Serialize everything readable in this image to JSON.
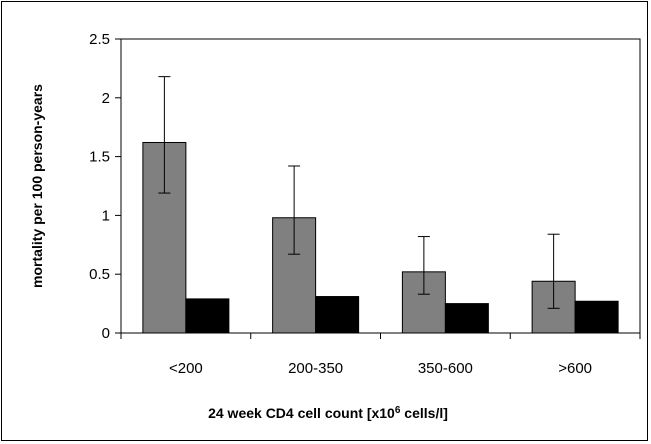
{
  "chart_data": {
    "type": "bar",
    "title": "",
    "xlabel": "24 week CD4 cell count [x10",
    "xlabel_sup": "6",
    "xlabel_tail": " cells/l]",
    "ylabel": "mortality per  100 person-years",
    "categories": [
      "<200",
      "200-350",
      "350-600",
      ">600"
    ],
    "series": [
      {
        "color": "#808080",
        "values": [
          1.62,
          0.98,
          0.52,
          0.44
        ],
        "error_low": [
          1.19,
          0.67,
          0.33,
          0.21
        ],
        "error_high": [
          2.18,
          1.42,
          0.82,
          0.84
        ]
      },
      {
        "color": "#000000",
        "values": [
          0.29,
          0.31,
          0.25,
          0.27
        ]
      }
    ],
    "yticks": [
      "0",
      "0.5",
      "1",
      "1.5",
      "2",
      "2.5"
    ],
    "ylim": [
      0,
      2.5
    ],
    "grid": false,
    "legend": "none"
  }
}
